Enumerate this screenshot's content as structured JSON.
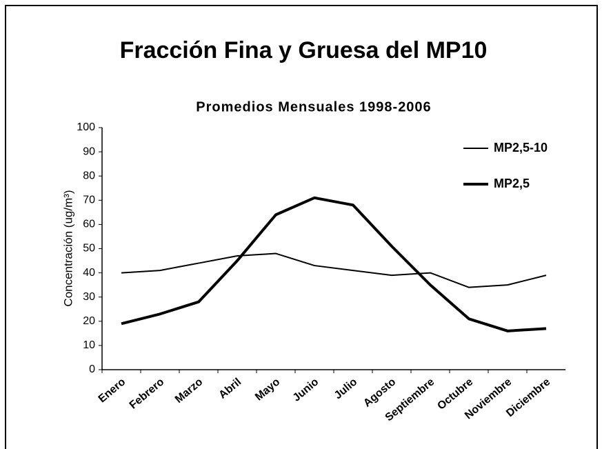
{
  "chart_data": {
    "type": "line",
    "title": "Fracción Fina y Gruesa del MP10",
    "subtitle": "Promedios Mensuales 1998-2006",
    "y_label": "Concentración (ug/m³)",
    "categories": [
      "Enero",
      "Febrero",
      "Marzo",
      "Abril",
      "Mayo",
      "Junio",
      "Julio",
      "Agosto",
      "Septiembre",
      "Octubre",
      "Noviembre",
      "Diciembre"
    ],
    "series": [
      {
        "name": "MP2,5-10",
        "color": "#000000",
        "values": [
          40,
          41,
          44,
          47,
          48,
          43,
          41,
          39,
          40,
          34,
          35,
          39
        ]
      },
      {
        "name": "MP2,5",
        "color": "#000000",
        "values": [
          19,
          23,
          28,
          45,
          64,
          71,
          68,
          51,
          35,
          21,
          16,
          17
        ]
      }
    ],
    "ylim": [
      0,
      100
    ],
    "yticks": [
      0,
      10,
      20,
      30,
      40,
      50,
      60,
      70,
      80,
      90,
      100
    ],
    "grid": false,
    "legend": "upper right"
  }
}
